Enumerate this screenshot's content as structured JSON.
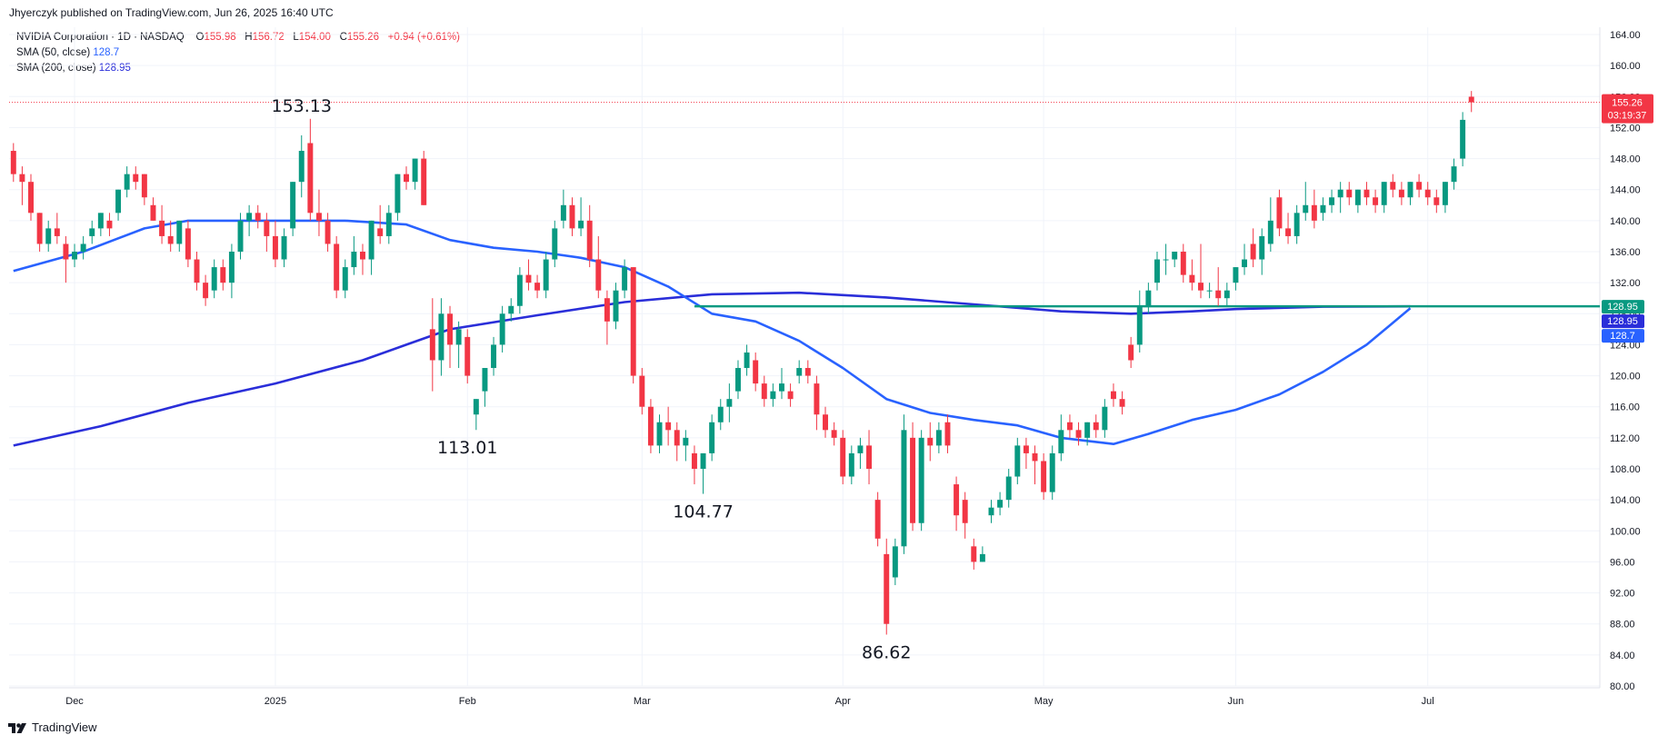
{
  "header": {
    "publisher": "Jhyerczyk published on TradingView.com, Jun 26, 2025 16:40 UTC"
  },
  "legend": {
    "symbol": "NVIDIA Corporation · 1D · NASDAQ",
    "o_label": "O",
    "o_value": "155.98",
    "h_label": "H",
    "h_value": "156.72",
    "l_label": "L",
    "l_value": "154.00",
    "c_label": "C",
    "c_value": "155.26",
    "change": "+0.94 (+0.61%)",
    "sma50_label": "SMA (50, close)",
    "sma50_value": "128.7",
    "sma200_label": "SMA (200, close)",
    "sma200_value": "128.95"
  },
  "footer": {
    "brand": "TradingView"
  },
  "colors": {
    "up": "#089981",
    "down": "#f23645",
    "sma50": "#2962ff",
    "sma200": "#2a2ed9",
    "support": "#089981",
    "grid": "#f0f3fa"
  },
  "chart_data": {
    "type": "candlestick",
    "ylim": [
      80,
      164
    ],
    "y_ticks": [
      80,
      84,
      88,
      92,
      96,
      100,
      104,
      108,
      112,
      116,
      120,
      124,
      128,
      132,
      136,
      140,
      144,
      148,
      152,
      156,
      160,
      164
    ],
    "x_ticks": [
      {
        "i": 7,
        "label": "Dec"
      },
      {
        "i": 30,
        "label": "2025"
      },
      {
        "i": 52,
        "label": "Feb"
      },
      {
        "i": 72,
        "label": "Mar"
      },
      {
        "i": 95,
        "label": "Apr"
      },
      {
        "i": 118,
        "label": "May"
      },
      {
        "i": 140,
        "label": "Jun"
      },
      {
        "i": 162,
        "label": "Jul"
      }
    ],
    "bar_count": 182,
    "last_price": "155.26",
    "countdown": "03:19:37",
    "price_tags": [
      {
        "value": 128.95,
        "label": "128.95",
        "color": "#089981"
      },
      {
        "value": 128.95,
        "label": "128.95",
        "color": "#2a2ed9"
      },
      {
        "value": 128.7,
        "label": "128.7",
        "color": "#2962ff"
      }
    ],
    "support_line": {
      "value": 128.95,
      "from_i": 78,
      "to_i": 159
    },
    "annotations": [
      {
        "i": 33,
        "y": 153.13,
        "label": "153.13",
        "pos": "above"
      },
      {
        "i": 52,
        "y": 113.01,
        "label": "113.01",
        "pos": "below"
      },
      {
        "i": 79,
        "y": 104.77,
        "label": "104.77",
        "pos": "below"
      },
      {
        "i": 100,
        "y": 86.62,
        "label": "86.62",
        "pos": "below"
      }
    ],
    "candles": [
      [
        0,
        149,
        150,
        145,
        146
      ],
      [
        1,
        146,
        147,
        142,
        145
      ],
      [
        2,
        145,
        146,
        140,
        141
      ],
      [
        3,
        141,
        141,
        136,
        137
      ],
      [
        4,
        137,
        140,
        136,
        139
      ],
      [
        5,
        139,
        141,
        137,
        138
      ],
      [
        6,
        137,
        138,
        132,
        135
      ],
      [
        7,
        135,
        137,
        134,
        136
      ],
      [
        8,
        136,
        138,
        135,
        137
      ],
      [
        9,
        138,
        140,
        137,
        139
      ],
      [
        10,
        139,
        141,
        138,
        141
      ],
      [
        11,
        140,
        141,
        138,
        139
      ],
      [
        12,
        141,
        144,
        140,
        144
      ],
      [
        13,
        144,
        147,
        143,
        146
      ],
      [
        14,
        146,
        147,
        144,
        145
      ],
      [
        15,
        146,
        146,
        142,
        143
      ],
      [
        16,
        142,
        143,
        140,
        140
      ],
      [
        17,
        140,
        142,
        137,
        138
      ],
      [
        18,
        138,
        140,
        136,
        137
      ],
      [
        19,
        137,
        140,
        136,
        140
      ],
      [
        20,
        139,
        140,
        134,
        135
      ],
      [
        21,
        135,
        136,
        131,
        132
      ],
      [
        22,
        132,
        133,
        129,
        130
      ],
      [
        23,
        131,
        135,
        130,
        134
      ],
      [
        24,
        134,
        135,
        131,
        132
      ],
      [
        25,
        132,
        137,
        130,
        136
      ],
      [
        26,
        136,
        141,
        135,
        140
      ],
      [
        27,
        140,
        142,
        138,
        141
      ],
      [
        28,
        141,
        142,
        139,
        140
      ],
      [
        29,
        140,
        141,
        136,
        138
      ],
      [
        30,
        138,
        140,
        134,
        135
      ],
      [
        31,
        135,
        139,
        134,
        138
      ],
      [
        32,
        139,
        145,
        138,
        145
      ],
      [
        33,
        145,
        151,
        143,
        149
      ],
      [
        34,
        150,
        153.13,
        140,
        141
      ],
      [
        35,
        141,
        144,
        138,
        140
      ],
      [
        36,
        140,
        141,
        136,
        137
      ],
      [
        37,
        137,
        138,
        130,
        131
      ],
      [
        38,
        131,
        135,
        130,
        134
      ],
      [
        39,
        134,
        138,
        133,
        136
      ],
      [
        40,
        136,
        137,
        133,
        135
      ],
      [
        41,
        135,
        140,
        133,
        140
      ],
      [
        42,
        139,
        142,
        137,
        138
      ],
      [
        43,
        138,
        142,
        137,
        141
      ],
      [
        44,
        141,
        146,
        140,
        146
      ],
      [
        45,
        146,
        147,
        144,
        145
      ],
      [
        46,
        145,
        148,
        144,
        148
      ],
      [
        47,
        148,
        149,
        142,
        142
      ],
      [
        48,
        126,
        130,
        118,
        122
      ],
      [
        49,
        122,
        130,
        120,
        128
      ],
      [
        50,
        128,
        129,
        121,
        124
      ],
      [
        51,
        124,
        127,
        121,
        126
      ],
      [
        52,
        125,
        126,
        119,
        120
      ],
      [
        53,
        115,
        117,
        113.01,
        117
      ],
      [
        54,
        118,
        121,
        116,
        121
      ],
      [
        55,
        121,
        125,
        120,
        124
      ],
      [
        56,
        124,
        129,
        123,
        128
      ],
      [
        57,
        128,
        130,
        127,
        129
      ],
      [
        58,
        129,
        134,
        128,
        133
      ],
      [
        59,
        133,
        135,
        131,
        132
      ],
      [
        60,
        132,
        133,
        130,
        131
      ],
      [
        61,
        131,
        136,
        130,
        135
      ],
      [
        62,
        135,
        140,
        134,
        139
      ],
      [
        63,
        140,
        144,
        139,
        142
      ],
      [
        64,
        142,
        143,
        138,
        139
      ],
      [
        65,
        139,
        143,
        138,
        140
      ],
      [
        66,
        140,
        142,
        134,
        135
      ],
      [
        67,
        135,
        138,
        130,
        131
      ],
      [
        68,
        130,
        131,
        124,
        127
      ],
      [
        69,
        127,
        132,
        126,
        131
      ],
      [
        70,
        131,
        135,
        130,
        134
      ],
      [
        71,
        134,
        134,
        119,
        120
      ],
      [
        72,
        120,
        121,
        115,
        116
      ],
      [
        73,
        116,
        117,
        110,
        111
      ],
      [
        74,
        111,
        115,
        110,
        114
      ],
      [
        75,
        114,
        116,
        111,
        113
      ],
      [
        76,
        113,
        114,
        109,
        111
      ],
      [
        77,
        111,
        113,
        109,
        112
      ],
      [
        78,
        110,
        111,
        106,
        108
      ],
      [
        79,
        108,
        110,
        104.77,
        110
      ],
      [
        80,
        110,
        115,
        109,
        114
      ],
      [
        81,
        114,
        117,
        113,
        116
      ],
      [
        82,
        116,
        119,
        114,
        117
      ],
      [
        83,
        118,
        122,
        117,
        121
      ],
      [
        84,
        121,
        124,
        120,
        123
      ],
      [
        85,
        122,
        123,
        118,
        119
      ],
      [
        86,
        119,
        120,
        116,
        117
      ],
      [
        87,
        117,
        119,
        116,
        118
      ],
      [
        88,
        118,
        121,
        117,
        119
      ],
      [
        89,
        118,
        119,
        116,
        117
      ],
      [
        90,
        120,
        122,
        119,
        121
      ],
      [
        91,
        121,
        122,
        119,
        120
      ],
      [
        92,
        119,
        120,
        113,
        115
      ],
      [
        93,
        115,
        116,
        112,
        113
      ],
      [
        94,
        113,
        114,
        111,
        112
      ],
      [
        95,
        112,
        113,
        106,
        107
      ],
      [
        96,
        107,
        111,
        106,
        110
      ],
      [
        97,
        110,
        112,
        108,
        111
      ],
      [
        98,
        111,
        113,
        106,
        108
      ],
      [
        99,
        104,
        105,
        98,
        99
      ],
      [
        100,
        97,
        99,
        86.62,
        88
      ],
      [
        101,
        94,
        99,
        93,
        98
      ],
      [
        102,
        98,
        115,
        97,
        113
      ],
      [
        103,
        112,
        114,
        100,
        101
      ],
      [
        104,
        101,
        113,
        100,
        112
      ],
      [
        105,
        112,
        114,
        109,
        111
      ],
      [
        106,
        111,
        114,
        110,
        113
      ],
      [
        107,
        114,
        115,
        110,
        111
      ],
      [
        108,
        106,
        107,
        100,
        102
      ],
      [
        109,
        104,
        105,
        99,
        101
      ],
      [
        110,
        98,
        99,
        95,
        96
      ],
      [
        111,
        96,
        98,
        96,
        97
      ],
      [
        112,
        102,
        104,
        101,
        103
      ],
      [
        113,
        103,
        105,
        102,
        104
      ],
      [
        114,
        104,
        108,
        103,
        107
      ],
      [
        115,
        107,
        112,
        106,
        111
      ],
      [
        116,
        111,
        112,
        108,
        110
      ],
      [
        117,
        110,
        111,
        106,
        109
      ],
      [
        118,
        109,
        110,
        104,
        105
      ],
      [
        119,
        105,
        111,
        104,
        110
      ],
      [
        120,
        110,
        115,
        109,
        113
      ],
      [
        121,
        114,
        115,
        112,
        113
      ],
      [
        122,
        113,
        114,
        111,
        112
      ],
      [
        123,
        112,
        114,
        111,
        114
      ],
      [
        124,
        114,
        115,
        112,
        113
      ],
      [
        125,
        113,
        117,
        112,
        116
      ],
      [
        126,
        118,
        119,
        116,
        117
      ],
      [
        127,
        117,
        118,
        115,
        116
      ],
      [
        128,
        124,
        125,
        121,
        122
      ],
      [
        129,
        124,
        131,
        123,
        129
      ],
      [
        130,
        129,
        132,
        128,
        131
      ],
      [
        131,
        132,
        136,
        131,
        135
      ],
      [
        132,
        135,
        137,
        133,
        135
      ],
      [
        133,
        135,
        136,
        134,
        136
      ],
      [
        134,
        136,
        137,
        132,
        133
      ],
      [
        135,
        133,
        135,
        131,
        132
      ],
      [
        136,
        132,
        137,
        130,
        131
      ],
      [
        137,
        131,
        132,
        130,
        131
      ],
      [
        138,
        131,
        134,
        129,
        130
      ],
      [
        139,
        130,
        132,
        129,
        131
      ],
      [
        140,
        132,
        134,
        131,
        134
      ],
      [
        141,
        134,
        137,
        133,
        135
      ],
      [
        142,
        137,
        139,
        134,
        135
      ],
      [
        143,
        135,
        139,
        133,
        138
      ],
      [
        144,
        137,
        143,
        136,
        140
      ],
      [
        145,
        143,
        144,
        138,
        139
      ],
      [
        146,
        139,
        141,
        137,
        138
      ],
      [
        147,
        138,
        142,
        137,
        141
      ],
      [
        148,
        141,
        145,
        140,
        142
      ],
      [
        149,
        142,
        144,
        139,
        140
      ],
      [
        150,
        141,
        143,
        140,
        142
      ],
      [
        151,
        142,
        144,
        141,
        143
      ],
      [
        152,
        143,
        145,
        141,
        144
      ],
      [
        153,
        144,
        145,
        142,
        143
      ],
      [
        154,
        142,
        144,
        141,
        144
      ],
      [
        155,
        144,
        145,
        142,
        143
      ],
      [
        156,
        143,
        144,
        141,
        142
      ],
      [
        157,
        142,
        145,
        141,
        145
      ],
      [
        158,
        145,
        146,
        143,
        144
      ],
      [
        159,
        144,
        145,
        142,
        143
      ],
      [
        160,
        143,
        145,
        142,
        145
      ],
      [
        161,
        145,
        146,
        143,
        144
      ],
      [
        162,
        144,
        145,
        142,
        143
      ],
      [
        163,
        143,
        144,
        141,
        142
      ],
      [
        164,
        142,
        145,
        141,
        145
      ],
      [
        165,
        145,
        148,
        144,
        147
      ],
      [
        166,
        148,
        154,
        147,
        153
      ],
      [
        167,
        155.98,
        156.72,
        154,
        155.26
      ]
    ],
    "sma200": [
      [
        0,
        111
      ],
      [
        10,
        113.5
      ],
      [
        20,
        116.5
      ],
      [
        30,
        119
      ],
      [
        40,
        122
      ],
      [
        45,
        124
      ],
      [
        50,
        126
      ],
      [
        60,
        127.8
      ],
      [
        70,
        129.5
      ],
      [
        80,
        130.5
      ],
      [
        90,
        130.7
      ],
      [
        100,
        130.1
      ],
      [
        110,
        129.2
      ],
      [
        120,
        128.3
      ],
      [
        128,
        128.0
      ],
      [
        135,
        128.3
      ],
      [
        140,
        128.6
      ],
      [
        150,
        128.9
      ],
      [
        160,
        128.95
      ]
    ],
    "sma50": [
      [
        0,
        133.5
      ],
      [
        8,
        136
      ],
      [
        15,
        139
      ],
      [
        20,
        140
      ],
      [
        30,
        140
      ],
      [
        38,
        140
      ],
      [
        45,
        139.5
      ],
      [
        50,
        137.5
      ],
      [
        55,
        136.5
      ],
      [
        60,
        136
      ],
      [
        65,
        135.2
      ],
      [
        70,
        134
      ],
      [
        75,
        131.5
      ],
      [
        80,
        128
      ],
      [
        85,
        127
      ],
      [
        90,
        124.5
      ],
      [
        95,
        121
      ],
      [
        100,
        117
      ],
      [
        105,
        115.2
      ],
      [
        110,
        114.3
      ],
      [
        115,
        113.6
      ],
      [
        120,
        112
      ],
      [
        126,
        111.2
      ],
      [
        130,
        112.5
      ],
      [
        135,
        114.3
      ],
      [
        140,
        115.6
      ],
      [
        145,
        117.6
      ],
      [
        150,
        120.5
      ],
      [
        155,
        124
      ],
      [
        160,
        128.7
      ]
    ]
  }
}
